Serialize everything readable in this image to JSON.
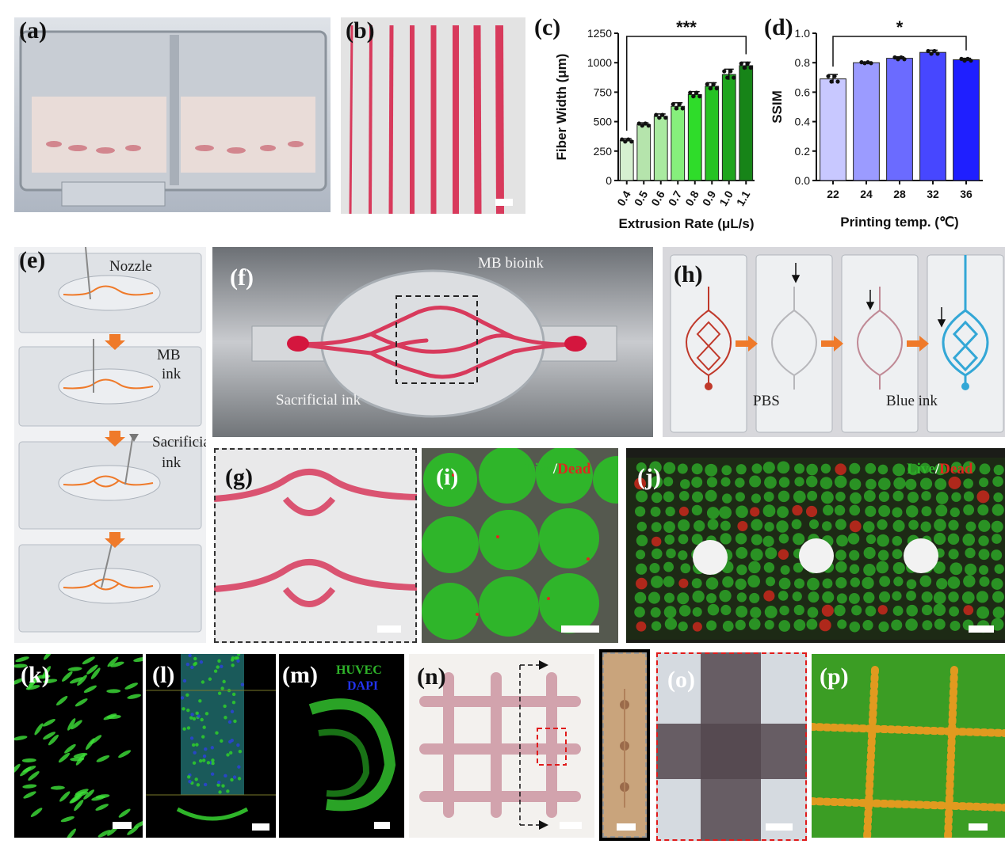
{
  "panels": {
    "a": {
      "label": "(a)"
    },
    "b": {
      "label": "(b)"
    },
    "c": {
      "label": "(c)"
    },
    "d": {
      "label": "(d)"
    },
    "e": {
      "label": "(e)",
      "annotations": [
        "Nozzle",
        "MB",
        "ink",
        "Sacrificial",
        "ink"
      ]
    },
    "f": {
      "label": "(f)",
      "annotations": [
        "MB bioink",
        "Sacrificial ink"
      ]
    },
    "g": {
      "label": "(g)"
    },
    "h": {
      "label": "(h)",
      "annotations": [
        "PBS",
        "Blue ink"
      ]
    },
    "i": {
      "label": "(i)",
      "legend_live": "Live",
      "legend_sep": "/",
      "legend_dead": "Dead"
    },
    "j": {
      "label": "(j)",
      "legend_live": "Live",
      "legend_sep": "/",
      "legend_dead": "Dead"
    },
    "k": {
      "label": "(k)"
    },
    "l": {
      "label": "(l)"
    },
    "m": {
      "label": "(m)",
      "legend_a": "HUVEC",
      "legend_b": "DAPI"
    },
    "n": {
      "label": "(n)"
    },
    "o": {
      "label": "(o)"
    },
    "p": {
      "label": "(p)"
    }
  },
  "colors": {
    "red_ink": "#d83a5c",
    "live_green": "#2fb52a",
    "dead_red": "#e0281e",
    "blue_ink": "#33a7d6",
    "orange_arrow": "#ef7a2a"
  },
  "chart_data": [
    {
      "type": "bar",
      "panel": "c",
      "categories": [
        "0.4",
        "0.5",
        "0.6",
        "0.7",
        "0.8",
        "0.9",
        "1.0",
        "1.1"
      ],
      "values": [
        340,
        475,
        545,
        630,
        730,
        800,
        900,
        975
      ],
      "errors": [
        15,
        15,
        20,
        30,
        25,
        30,
        45,
        30
      ],
      "bar_colors": [
        "#d6f0d0",
        "#b5e4ac",
        "#a9eaa0",
        "#86ef7c",
        "#2fdc2a",
        "#26c323",
        "#1ea51d",
        "#178418"
      ],
      "xlabel": "Extrusion Rate (μL/s)",
      "ylabel": "Fiber Width (μm)",
      "ylim": [
        0,
        1250
      ],
      "yticks": [
        "0",
        "250",
        "500",
        "750",
        "1000",
        "1250"
      ],
      "significance": "***"
    },
    {
      "type": "bar",
      "panel": "d",
      "categories": [
        "22",
        "24",
        "28",
        "32",
        "36"
      ],
      "values": [
        0.69,
        0.8,
        0.83,
        0.87,
        0.82
      ],
      "errors": [
        0.03,
        0.005,
        0.01,
        0.015,
        0.01
      ],
      "bar_colors": [
        "#c8c8ff",
        "#9b9bff",
        "#6b6bff",
        "#4747ff",
        "#1f1fff"
      ],
      "xlabel": "Printing temp. (℃)",
      "ylabel": "SSIM",
      "ylim": [
        0,
        1.0
      ],
      "yticks": [
        "0.0",
        "0.2",
        "0.4",
        "0.6",
        "0.8",
        "1.0"
      ],
      "significance": "*"
    }
  ]
}
